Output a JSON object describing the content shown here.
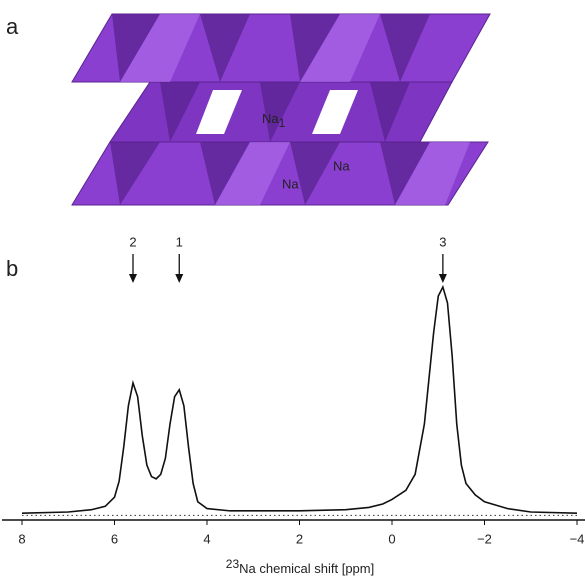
{
  "structure": {
    "panel_label": "a",
    "labels": [
      {
        "text": "Na",
        "subscript": "1"
      },
      {
        "text": "Na"
      },
      {
        "text": "Na"
      }
    ]
  },
  "chart_data": {
    "type": "line",
    "panel_label": "b",
    "xlabel": {
      "superscript": "23",
      "text": "Na chemical shift [ppm]"
    },
    "x": [
      8,
      7,
      6.5,
      6.2,
      6.0,
      5.9,
      5.8,
      5.7,
      5.6,
      5.5,
      5.4,
      5.3,
      5.2,
      5.1,
      5.0,
      4.9,
      4.8,
      4.7,
      4.6,
      4.5,
      4.4,
      4.3,
      4.2,
      4.0,
      3.5,
      2,
      1,
      0.5,
      0.2,
      0,
      -0.3,
      -0.5,
      -0.7,
      -0.9,
      -1.0,
      -1.1,
      -1.2,
      -1.3,
      -1.4,
      -1.5,
      -1.6,
      -1.8,
      -2,
      -2.5,
      -3,
      -4
    ],
    "values": [
      1,
      1.5,
      2.5,
      4,
      8,
      15,
      30,
      48,
      58,
      52,
      35,
      22,
      17,
      16,
      18,
      25,
      40,
      52,
      55,
      48,
      30,
      14,
      6,
      3,
      2,
      2,
      2.5,
      3.5,
      5,
      7,
      11,
      18,
      40,
      80,
      96,
      100,
      93,
      70,
      40,
      22,
      14,
      9,
      6,
      3,
      1.5,
      1
    ],
    "color": "#111111",
    "xlim": [
      8,
      -4
    ],
    "xticks": [
      8,
      6,
      4,
      2,
      0,
      {
        "value": -2,
        "label": "−2"
      },
      {
        "value": -4,
        "label": "−4"
      }
    ],
    "ylim": [
      -2,
      100
    ],
    "annotations": [
      {
        "x": 5.6,
        "label": "2"
      },
      {
        "x": 4.6,
        "label": "1"
      },
      {
        "x": -1.1,
        "label": "3"
      }
    ]
  }
}
